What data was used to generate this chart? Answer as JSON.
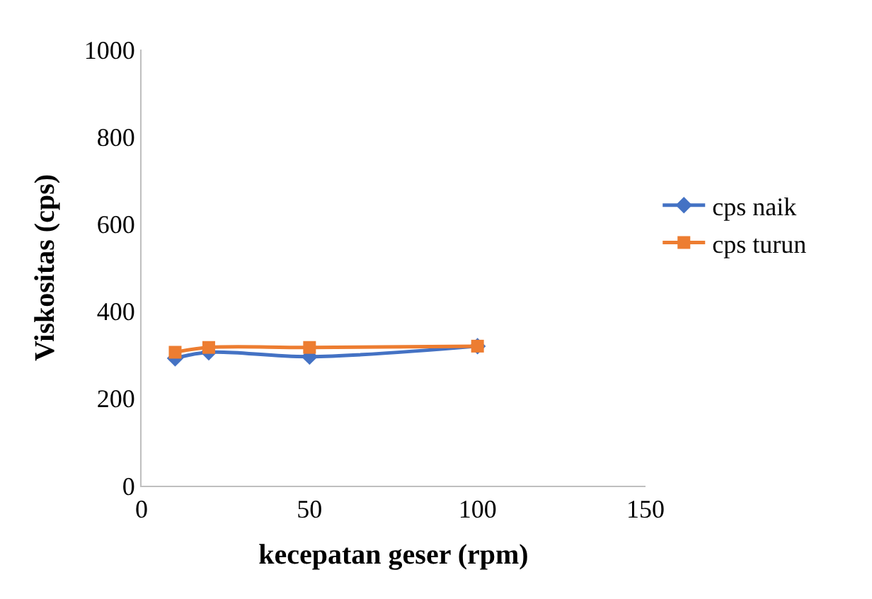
{
  "chart_data": {
    "type": "line",
    "xlabel": "kecepatan geser (rpm)",
    "ylabel": "Viskositas (cps)",
    "x": [
      10,
      20,
      50,
      100
    ],
    "series": [
      {
        "name": "cps naik",
        "color": "#4472c4",
        "values": [
          292,
          306,
          296,
          320
        ],
        "marker": "diamond"
      },
      {
        "name": "cps turun",
        "color": "#ed7d31",
        "values": [
          306,
          317,
          317,
          320
        ],
        "marker": "square"
      }
    ],
    "xlim": [
      0,
      150
    ],
    "xticks": [
      0,
      50,
      100,
      150
    ],
    "ylim": [
      0,
      1000
    ],
    "yticks": [
      0,
      200,
      400,
      600,
      800,
      1000
    ],
    "legend": "right"
  }
}
